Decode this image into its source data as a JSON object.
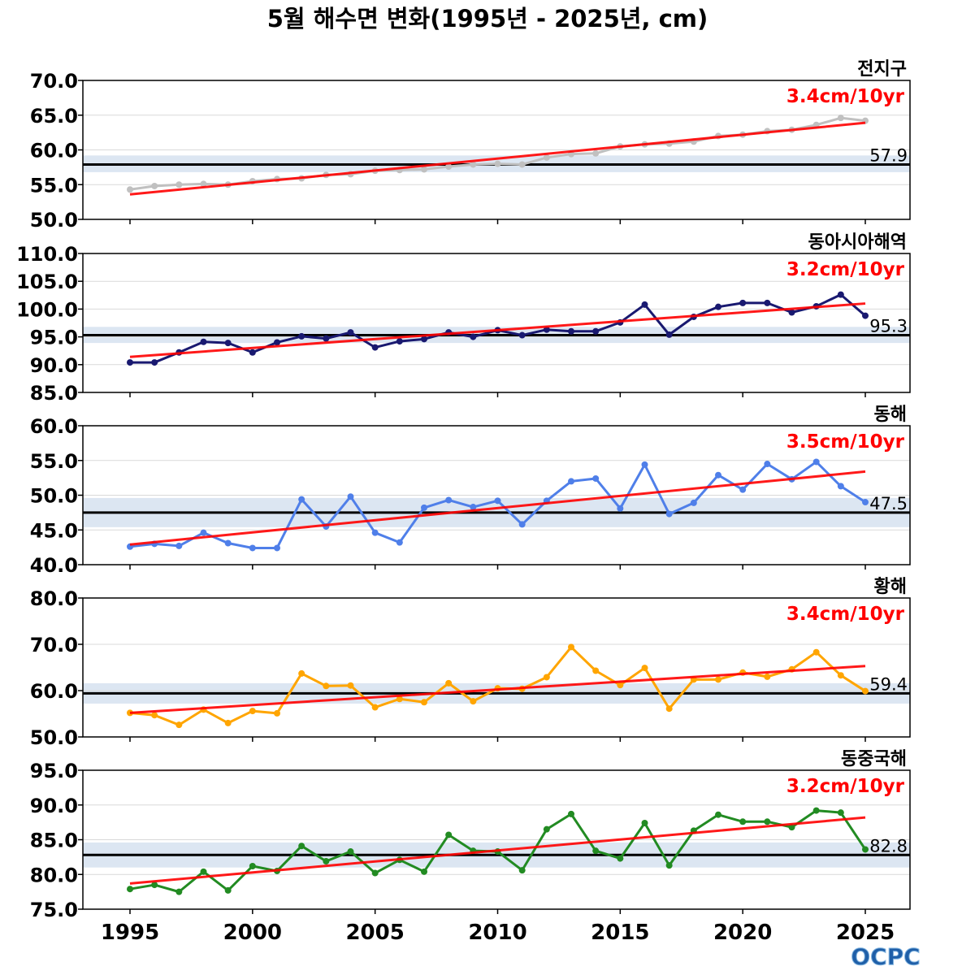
{
  "title": "5월 해수면 변화(1995년 - 2025년, cm)",
  "logo": {
    "text": "OCPC",
    "colors": {
      "primary": "#1f5fa8",
      "light": "#7fb2de"
    }
  },
  "colors": {
    "trend": "#ff0000",
    "mean": "#000000",
    "band": "#dce6f2",
    "grid": "#d9d9d9"
  },
  "chart_data": {
    "type": "line",
    "x": [
      1995,
      1996,
      1997,
      1998,
      1999,
      2000,
      2001,
      2002,
      2003,
      2004,
      2005,
      2006,
      2007,
      2008,
      2009,
      2010,
      2011,
      2012,
      2013,
      2014,
      2015,
      2016,
      2017,
      2018,
      2019,
      2020,
      2021,
      2022,
      2023,
      2024,
      2025
    ],
    "xticks": [
      1995,
      2000,
      2005,
      2010,
      2015,
      2020,
      2025
    ],
    "panels": [
      {
        "name": "전지구",
        "trend_label": "3.4cm/10yr",
        "mean_label": "57.9",
        "mean": 57.9,
        "band": [
          56.8,
          59.2
        ],
        "ylim": [
          50,
          70
        ],
        "yticks": [
          "70.0",
          "65.0",
          "60.0",
          "55.0",
          "50.0"
        ],
        "color": "#c0c0c0",
        "trend": [
          53.6,
          63.9
        ],
        "values": [
          54.3,
          54.8,
          55.0,
          55.1,
          55.0,
          55.5,
          55.8,
          55.9,
          56.4,
          56.5,
          57.0,
          57.1,
          57.2,
          57.6,
          57.9,
          58.0,
          57.9,
          58.9,
          59.4,
          59.5,
          60.5,
          60.8,
          60.9,
          61.2,
          62.0,
          62.2,
          62.7,
          62.9,
          63.6,
          64.6,
          64.2
        ]
      },
      {
        "name": "동아시아해역",
        "trend_label": "3.2cm/10yr",
        "mean_label": "95.3",
        "mean": 95.3,
        "band": [
          93.9,
          96.8
        ],
        "ylim": [
          85,
          110
        ],
        "yticks": [
          "110.0",
          "105.0",
          "100.0",
          "95.0",
          "90.0",
          "85.0"
        ],
        "color": "#191970",
        "trend": [
          91.4,
          101.0
        ],
        "values": [
          90.4,
          90.4,
          92.2,
          94.1,
          93.9,
          92.2,
          94.0,
          95.1,
          94.7,
          95.8,
          93.1,
          94.2,
          94.6,
          95.8,
          95.0,
          96.2,
          95.3,
          96.3,
          96.0,
          96.0,
          97.6,
          100.8,
          95.4,
          98.6,
          100.4,
          101.1,
          101.1,
          99.4,
          100.5,
          102.6,
          98.8
        ]
      },
      {
        "name": "동해",
        "trend_label": "3.5cm/10yr",
        "mean_label": "47.5",
        "mean": 47.5,
        "band": [
          45.4,
          49.6
        ],
        "ylim": [
          40,
          60
        ],
        "yticks": [
          "60.0",
          "55.0",
          "50.0",
          "45.0",
          "40.0"
        ],
        "color": "#4f7fe9",
        "trend": [
          42.9,
          53.4
        ],
        "values": [
          42.6,
          43.0,
          42.7,
          44.6,
          43.1,
          42.4,
          42.4,
          49.4,
          45.5,
          49.8,
          44.6,
          43.2,
          48.2,
          49.3,
          48.3,
          49.2,
          45.8,
          49.2,
          52.0,
          52.4,
          48.1,
          54.4,
          47.3,
          48.9,
          52.9,
          50.8,
          54.5,
          52.3,
          54.8,
          51.3,
          49.0
        ]
      },
      {
        "name": "황해",
        "trend_label": "3.4cm/10yr",
        "mean_label": "59.4",
        "mean": 59.4,
        "band": [
          57.2,
          61.6
        ],
        "ylim": [
          50,
          80
        ],
        "yticks": [
          "80.0",
          "70.0",
          "60.0",
          "50.0"
        ],
        "color": "#ffa500",
        "trend": [
          55.2,
          65.3
        ],
        "values": [
          55.2,
          54.7,
          52.6,
          55.9,
          53.0,
          55.6,
          55.1,
          63.7,
          61.0,
          61.1,
          56.4,
          58.2,
          57.5,
          61.6,
          57.7,
          60.5,
          60.4,
          62.9,
          69.4,
          64.3,
          61.2,
          64.9,
          56.1,
          62.4,
          62.4,
          63.9,
          63.0,
          64.6,
          68.3,
          63.3,
          59.9
        ]
      },
      {
        "name": "동중국해",
        "trend_label": "3.2cm/10yr",
        "mean_label": "82.8",
        "mean": 82.8,
        "band": [
          81.0,
          84.6
        ],
        "ylim": [
          75,
          95
        ],
        "yticks": [
          "95.0",
          "90.0",
          "85.0",
          "80.0",
          "75.0"
        ],
        "color": "#228b22",
        "trend": [
          78.7,
          88.2
        ],
        "values": [
          77.9,
          78.5,
          77.5,
          80.4,
          77.7,
          81.2,
          80.5,
          84.1,
          81.9,
          83.3,
          80.2,
          82.1,
          80.4,
          85.7,
          83.4,
          83.3,
          80.6,
          86.5,
          88.7,
          83.4,
          82.3,
          87.4,
          81.3,
          86.3,
          88.6,
          87.6,
          87.6,
          86.8,
          89.2,
          88.9,
          83.6
        ]
      }
    ]
  }
}
